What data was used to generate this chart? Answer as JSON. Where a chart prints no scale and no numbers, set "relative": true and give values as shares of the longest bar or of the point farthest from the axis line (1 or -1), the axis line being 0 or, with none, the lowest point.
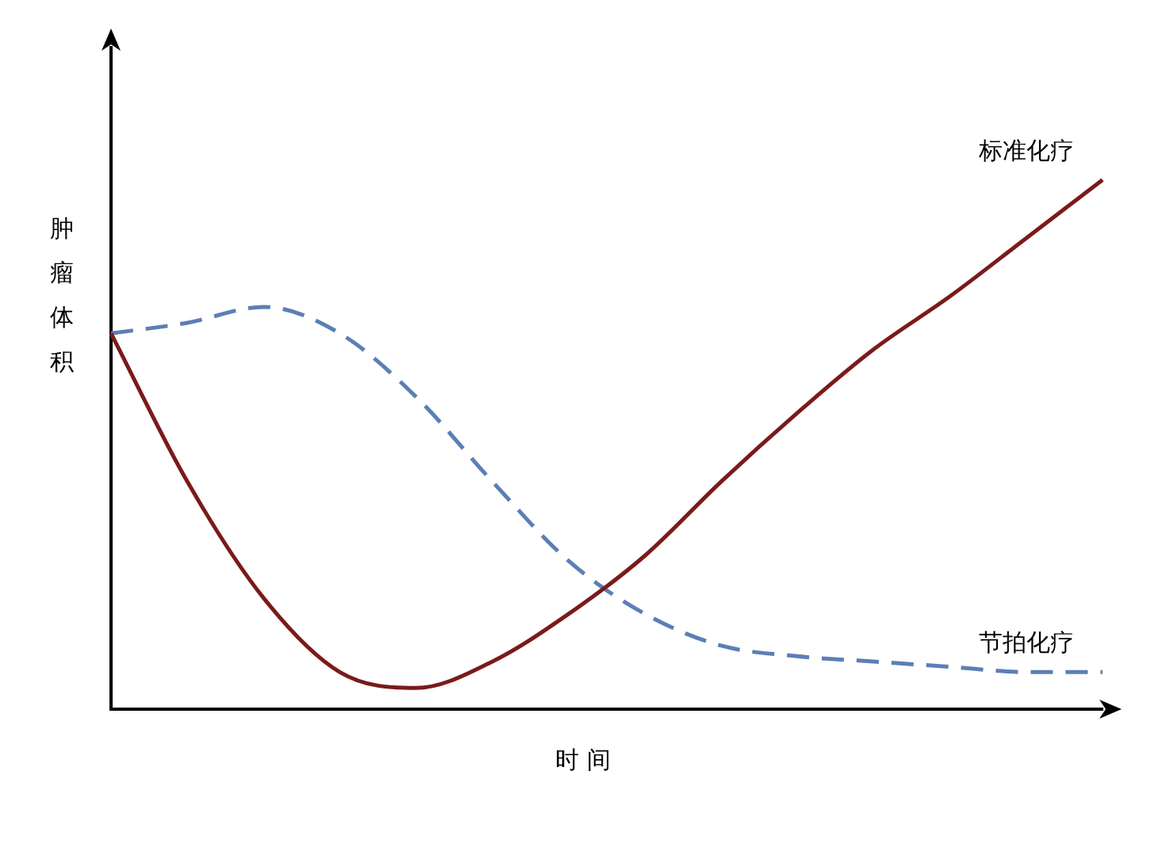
{
  "chart_data": {
    "type": "line",
    "relative": true,
    "xlabel": "时 间",
    "ylabel": "肿瘤体积",
    "categories": [
      null,
      null,
      null,
      null,
      null,
      null,
      null,
      null,
      null,
      null,
      null,
      null,
      null,
      null
    ],
    "legend": false,
    "grid": false,
    "marker": "none",
    "series": [
      {
        "name": "标准化疗",
        "color": "#7b1a1a",
        "line_style": "solid",
        "values": [
          0.71,
          0.43,
          0.21,
          0.07,
          0.04,
          0.09,
          0.18,
          0.29,
          0.43,
          0.56,
          0.68,
          0.78,
          0.89,
          1
        ]
      },
      {
        "name": "节拍化疗",
        "color": "#5b7fb5",
        "line_style": "dashed",
        "values": [
          0.71,
          0.73,
          0.76,
          0.71,
          0.59,
          0.43,
          0.28,
          0.18,
          0.12,
          0.1,
          0.09,
          0.08,
          0.07,
          0.07
        ]
      }
    ]
  }
}
